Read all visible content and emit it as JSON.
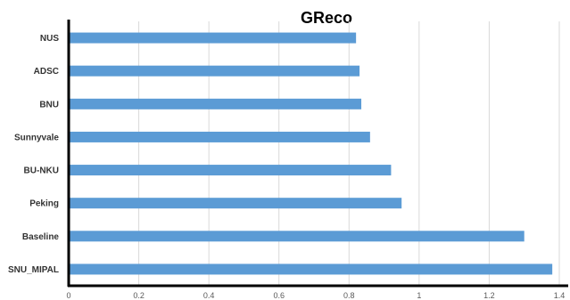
{
  "chart_data": {
    "type": "bar",
    "orientation": "horizontal",
    "title": "GReco",
    "xlabel": "",
    "ylabel": "",
    "categories": [
      "NUS",
      "ADSC",
      "BNU",
      "Sunnyvale",
      "BU-NKU",
      "Peking",
      "Baseline",
      "SNU_MIPAL"
    ],
    "values": [
      0.82,
      0.83,
      0.835,
      0.86,
      0.92,
      0.95,
      1.3,
      1.38
    ],
    "xlim": [
      0,
      1.4
    ],
    "xticks": [
      0,
      0.2,
      0.4,
      0.6,
      0.8,
      1,
      1.2,
      1.4
    ],
    "xtick_labels": [
      "0",
      "0.2",
      "0.4",
      "0.6",
      "0.8",
      "1",
      "1.2",
      "1.4"
    ],
    "grid": "vertical",
    "legend": "none",
    "colors": {
      "bar": "#5B9BD5",
      "grid": "#D9D9D9",
      "axis": "#000000"
    }
  }
}
